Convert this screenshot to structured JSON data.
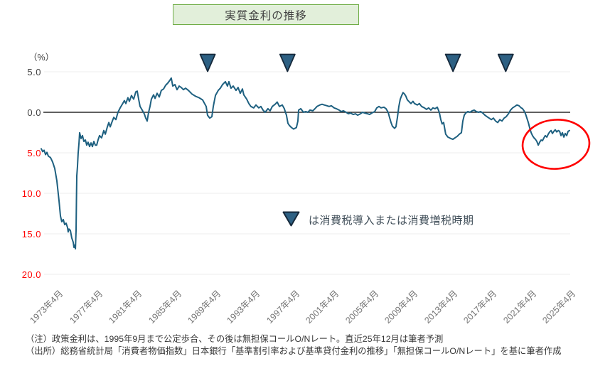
{
  "title": {
    "text": "実質金利の推移"
  },
  "axis": {
    "percent_label": "（%）"
  },
  "legend": {
    "text": "は消費税導入または消費増税時期",
    "marker": "triangle-down"
  },
  "notes": {
    "line1": "（注）政策金利は、1995年9月まで公定歩合、その後は無担保コールO/Nレート。直近25年12月は筆者予測",
    "line2": "（出所）総務省統計局「消費者物価指数」日本銀行「基準割引率および基準貸付金利の推移」「無担保コールO/Nレート」を基に筆者作成"
  },
  "colors": {
    "line": "#1e6080",
    "triangle_fill": "#2d6083",
    "triangle_stroke": "#16293b",
    "ellipse": "#ff0000",
    "zero_line": "#000000",
    "gridline": "#ececec",
    "negative_tick": "#ff0000",
    "positive_tick": "#3f3f3f",
    "title_bg": "#e2efda",
    "title_border": "#70ad47"
  },
  "chart_data": {
    "type": "line",
    "title": "実質金利の推移",
    "ylabel": "（%）",
    "unit": "%",
    "ylim": [
      -20,
      5
    ],
    "grid": "horizontal-faint",
    "y_ticks": [
      {
        "label": "5.0",
        "value": 5
      },
      {
        "label": "0.0",
        "value": 0
      },
      {
        "label": "5.0",
        "value": -5
      },
      {
        "label": "10.0",
        "value": -10
      },
      {
        "label": "15.0",
        "value": -15
      },
      {
        "label": "20.0",
        "value": -20
      }
    ],
    "x_ticks": [
      {
        "label": "1973年4月",
        "t": 1973.25
      },
      {
        "label": "1977年4月",
        "t": 1977.25
      },
      {
        "label": "1981年4月",
        "t": 1981.25
      },
      {
        "label": "1985年4月",
        "t": 1985.25
      },
      {
        "label": "1989年4月",
        "t": 1989.25
      },
      {
        "label": "1993年4月",
        "t": 1993.25
      },
      {
        "label": "1997年4月",
        "t": 1997.25
      },
      {
        "label": "2001年4月",
        "t": 2001.25
      },
      {
        "label": "2005年4月",
        "t": 2005.25
      },
      {
        "label": "2009年4月",
        "t": 2009.25
      },
      {
        "label": "2013年4月",
        "t": 2013.25
      },
      {
        "label": "2017年4月",
        "t": 2017.25
      },
      {
        "label": "2021年4月",
        "t": 2021.25
      },
      {
        "label": "2025年4月",
        "t": 2025.25
      }
    ],
    "tax_markers": {
      "symbol": "▼",
      "positions_t": [
        1989.2,
        1997.3,
        2014.1,
        2019.45
      ]
    },
    "highlight_ellipse": {
      "center_t": 2024.55,
      "center_value": -3.95,
      "note": "red oval around 2022-2025 negative real rates"
    },
    "series": [
      [
        1972.31,
        -4.5
      ],
      [
        1972.46,
        -4.86
      ],
      [
        1972.6,
        -4.68
      ],
      [
        1972.75,
        -5.23
      ],
      [
        1972.89,
        -4.95
      ],
      [
        1973.03,
        -5.41
      ],
      [
        1973.25,
        -5.59
      ],
      [
        1973.47,
        -6.13
      ],
      [
        1973.68,
        -6.94
      ],
      [
        1973.9,
        -8.47
      ],
      [
        1974.12,
        -10.99
      ],
      [
        1974.26,
        -12.79
      ],
      [
        1974.4,
        -13.51
      ],
      [
        1974.55,
        -13.24
      ],
      [
        1974.69,
        -13.87
      ],
      [
        1974.84,
        -13.69
      ],
      [
        1974.98,
        -14.23
      ],
      [
        1975.05,
        -14.77
      ],
      [
        1975.13,
        -14.41
      ],
      [
        1975.27,
        -14.59
      ],
      [
        1975.41,
        -15.5
      ],
      [
        1975.56,
        -16.04
      ],
      [
        1975.63,
        -16.67
      ],
      [
        1975.7,
        -16.4
      ],
      [
        1975.78,
        -16.85
      ],
      [
        1975.85,
        -14.6
      ],
      [
        1975.88,
        -11.0
      ],
      [
        1975.92,
        -7.84
      ],
      [
        1975.99,
        -6.67
      ],
      [
        1976.06,
        -5.1
      ],
      [
        1976.14,
        -3.8
      ],
      [
        1976.21,
        -2.52
      ],
      [
        1976.35,
        -3.24
      ],
      [
        1976.5,
        -2.88
      ],
      [
        1976.64,
        -3.6
      ],
      [
        1976.79,
        -3.42
      ],
      [
        1976.93,
        -4.05
      ],
      [
        1977.07,
        -3.69
      ],
      [
        1977.22,
        -4.23
      ],
      [
        1977.36,
        -3.78
      ],
      [
        1977.51,
        -4.23
      ],
      [
        1977.65,
        -3.6
      ],
      [
        1977.8,
        -4.05
      ],
      [
        1977.94,
        -4.05
      ],
      [
        1978.08,
        -3.42
      ],
      [
        1978.23,
        -2.88
      ],
      [
        1978.44,
        -3.15
      ],
      [
        1978.66,
        -2.25
      ],
      [
        1978.81,
        -2.7
      ],
      [
        1979.02,
        -1.8
      ],
      [
        1979.17,
        -1.26
      ],
      [
        1979.31,
        -1.8
      ],
      [
        1979.53,
        -1.08
      ],
      [
        1979.67,
        -0.63
      ],
      [
        1979.89,
        -0.9
      ],
      [
        1980.1,
        0.0
      ],
      [
        1980.32,
        0.54
      ],
      [
        1980.54,
        0.99
      ],
      [
        1980.75,
        1.44
      ],
      [
        1980.9,
        1.08
      ],
      [
        1981.11,
        1.8
      ],
      [
        1981.26,
        1.35
      ],
      [
        1981.47,
        2.07
      ],
      [
        1981.69,
        1.62
      ],
      [
        1981.91,
        2.52
      ],
      [
        1982.05,
        2.61
      ],
      [
        1982.2,
        1.62
      ],
      [
        1982.34,
        0.72
      ],
      [
        1982.56,
        0.27
      ],
      [
        1982.77,
        -0.18
      ],
      [
        1982.92,
        -0.72
      ],
      [
        1983.06,
        -1.08
      ],
      [
        1983.21,
        0.0
      ],
      [
        1983.35,
        0.72
      ],
      [
        1983.49,
        1.62
      ],
      [
        1983.71,
        2.16
      ],
      [
        1983.86,
        1.71
      ],
      [
        1984.07,
        2.34
      ],
      [
        1984.29,
        1.89
      ],
      [
        1984.5,
        2.7
      ],
      [
        1984.72,
        2.88
      ],
      [
        1984.94,
        3.33
      ],
      [
        1985.15,
        3.6
      ],
      [
        1985.37,
        3.96
      ],
      [
        1985.51,
        4.23
      ],
      [
        1985.66,
        3.24
      ],
      [
        1985.88,
        3.42
      ],
      [
        1986.09,
        2.79
      ],
      [
        1986.31,
        3.24
      ],
      [
        1986.52,
        3.06
      ],
      [
        1986.74,
        2.79
      ],
      [
        1986.96,
        2.97
      ],
      [
        1987.25,
        2.7
      ],
      [
        1987.61,
        2.25
      ],
      [
        1987.97,
        1.98
      ],
      [
        1988.33,
        1.8
      ],
      [
        1988.69,
        1.53
      ],
      [
        1989.05,
        0.72
      ],
      [
        1989.19,
        -0.36
      ],
      [
        1989.41,
        -0.72
      ],
      [
        1989.63,
        -0.54
      ],
      [
        1989.77,
        0.72
      ],
      [
        1989.99,
        2.07
      ],
      [
        1990.28,
        2.7
      ],
      [
        1990.49,
        2.97
      ],
      [
        1990.71,
        3.42
      ],
      [
        1991.0,
        3.78
      ],
      [
        1991.21,
        3.24
      ],
      [
        1991.36,
        3.78
      ],
      [
        1991.57,
        2.97
      ],
      [
        1991.79,
        3.24
      ],
      [
        1992.08,
        2.7
      ],
      [
        1992.29,
        3.06
      ],
      [
        1992.51,
        2.34
      ],
      [
        1992.73,
        2.88
      ],
      [
        1992.87,
        2.16
      ],
      [
        1993.16,
        1.62
      ],
      [
        1993.38,
        1.08
      ],
      [
        1993.59,
        0.72
      ],
      [
        1993.88,
        0.54
      ],
      [
        1994.1,
        0.9
      ],
      [
        1994.39,
        0.54
      ],
      [
        1994.6,
        0.72
      ],
      [
        1994.82,
        0.27
      ],
      [
        1995.04,
        0.0
      ],
      [
        1995.32,
        0.45
      ],
      [
        1995.54,
        0.18
      ],
      [
        1995.76,
        0.72
      ],
      [
        1996.05,
        0.99
      ],
      [
        1996.26,
        1.26
      ],
      [
        1996.48,
        0.72
      ],
      [
        1996.77,
        0.9
      ],
      [
        1996.98,
        0.45
      ],
      [
        1997.2,
        -0.36
      ],
      [
        1997.35,
        -1.35
      ],
      [
        1997.49,
        -1.62
      ],
      [
        1997.71,
        -1.89
      ],
      [
        1997.92,
        -2.07
      ],
      [
        1998.21,
        -1.89
      ],
      [
        1998.36,
        -1.08
      ],
      [
        1998.43,
        0.27
      ],
      [
        1998.65,
        0.45
      ],
      [
        1998.93,
        0.0
      ],
      [
        1999.15,
        0.09
      ],
      [
        1999.37,
        0.0
      ],
      [
        1999.58,
        0.27
      ],
      [
        1999.87,
        0.18
      ],
      [
        2000.09,
        0.45
      ],
      [
        2000.3,
        0.72
      ],
      [
        2000.59,
        0.9
      ],
      [
        2000.81,
        0.99
      ],
      [
        2001.03,
        0.9
      ],
      [
        2001.31,
        0.81
      ],
      [
        2001.53,
        0.72
      ],
      [
        2001.75,
        0.81
      ],
      [
        2002.04,
        0.54
      ],
      [
        2002.25,
        0.45
      ],
      [
        2002.54,
        0.27
      ],
      [
        2002.76,
        0.09
      ],
      [
        2002.97,
        0.18
      ],
      [
        2003.26,
        0.0
      ],
      [
        2003.48,
        -0.18
      ],
      [
        2003.7,
        -0.09
      ],
      [
        2003.98,
        -0.27
      ],
      [
        2004.2,
        -0.18
      ],
      [
        2004.42,
        -0.36
      ],
      [
        2004.71,
        -0.18
      ],
      [
        2004.92,
        0.0
      ],
      [
        2005.14,
        -0.09
      ],
      [
        2005.43,
        -0.18
      ],
      [
        2005.64,
        -0.27
      ],
      [
        2005.86,
        -0.09
      ],
      [
        2006.15,
        0.09
      ],
      [
        2006.37,
        0.54
      ],
      [
        2006.58,
        0.72
      ],
      [
        2006.8,
        0.54
      ],
      [
        2007.09,
        0.63
      ],
      [
        2007.3,
        0.45
      ],
      [
        2007.52,
        0.0
      ],
      [
        2007.66,
        -0.63
      ],
      [
        2007.81,
        -1.26
      ],
      [
        2007.95,
        -1.71
      ],
      [
        2008.17,
        -1.98
      ],
      [
        2008.31,
        -1.8
      ],
      [
        2008.46,
        -0.63
      ],
      [
        2008.6,
        0.72
      ],
      [
        2008.75,
        1.62
      ],
      [
        2008.89,
        2.07
      ],
      [
        2009.03,
        2.43
      ],
      [
        2009.18,
        2.25
      ],
      [
        2009.32,
        1.98
      ],
      [
        2009.47,
        1.53
      ],
      [
        2009.68,
        1.26
      ],
      [
        2009.83,
        1.08
      ],
      [
        2010.04,
        1.35
      ],
      [
        2010.19,
        1.08
      ],
      [
        2010.48,
        0.9
      ],
      [
        2010.69,
        1.08
      ],
      [
        2010.91,
        0.72
      ],
      [
        2011.2,
        0.54
      ],
      [
        2011.41,
        0.36
      ],
      [
        2011.63,
        0.54
      ],
      [
        2011.85,
        0.27
      ],
      [
        2012.06,
        0.54
      ],
      [
        2012.28,
        0.45
      ],
      [
        2012.5,
        0.63
      ],
      [
        2012.71,
        0.0
      ],
      [
        2012.86,
        -0.9
      ],
      [
        2013.0,
        -1.44
      ],
      [
        2013.15,
        -1.26
      ],
      [
        2013.36,
        -2.7
      ],
      [
        2013.58,
        -3.06
      ],
      [
        2013.87,
        -3.24
      ],
      [
        2014.09,
        -3.33
      ],
      [
        2014.3,
        -3.15
      ],
      [
        2014.52,
        -2.97
      ],
      [
        2014.74,
        -2.7
      ],
      [
        2014.95,
        -2.52
      ],
      [
        2015.1,
        -1.08
      ],
      [
        2015.24,
        -0.36
      ],
      [
        2015.39,
        -0.09
      ],
      [
        2015.6,
        0.09
      ],
      [
        2015.82,
        0.0
      ],
      [
        2016.04,
        0.18
      ],
      [
        2016.25,
        0.27
      ],
      [
        2016.47,
        0.09
      ],
      [
        2016.69,
        0.0
      ],
      [
        2016.9,
        0.09
      ],
      [
        2017.12,
        -0.09
      ],
      [
        2017.34,
        -0.36
      ],
      [
        2017.55,
        -0.54
      ],
      [
        2017.77,
        -0.72
      ],
      [
        2017.99,
        -0.9
      ],
      [
        2018.2,
        -0.72
      ],
      [
        2018.42,
        -1.08
      ],
      [
        2018.64,
        -1.26
      ],
      [
        2018.85,
        -0.9
      ],
      [
        2019.07,
        -1.08
      ],
      [
        2019.29,
        -0.72
      ],
      [
        2019.5,
        -0.54
      ],
      [
        2019.72,
        -0.18
      ],
      [
        2019.94,
        0.27
      ],
      [
        2020.15,
        0.54
      ],
      [
        2020.37,
        0.72
      ],
      [
        2020.59,
        0.9
      ],
      [
        2020.8,
        0.81
      ],
      [
        2021.02,
        0.54
      ],
      [
        2021.16,
        0.45
      ],
      [
        2021.31,
        0.18
      ],
      [
        2021.45,
        -0.18
      ],
      [
        2021.6,
        -0.72
      ],
      [
        2021.74,
        -1.26
      ],
      [
        2021.89,
        -1.98
      ],
      [
        2022.03,
        -2.52
      ],
      [
        2022.17,
        -2.88
      ],
      [
        2022.32,
        -3.15
      ],
      [
        2022.46,
        -3.33
      ],
      [
        2022.61,
        -3.6
      ],
      [
        2022.75,
        -4.05
      ],
      [
        2022.9,
        -3.69
      ],
      [
        2023.04,
        -3.42
      ],
      [
        2023.18,
        -3.51
      ],
      [
        2023.33,
        -3.15
      ],
      [
        2023.47,
        -2.88
      ],
      [
        2023.62,
        -3.06
      ],
      [
        2023.76,
        -2.7
      ],
      [
        2023.91,
        -2.43
      ],
      [
        2024.05,
        -2.25
      ],
      [
        2024.19,
        -2.61
      ],
      [
        2024.34,
        -2.34
      ],
      [
        2024.48,
        -2.16
      ],
      [
        2024.63,
        -2.43
      ],
      [
        2024.77,
        -2.25
      ],
      [
        2024.92,
        -2.34
      ],
      [
        2025.06,
        -2.88
      ],
      [
        2025.2,
        -2.52
      ],
      [
        2025.35,
        -3.06
      ],
      [
        2025.49,
        -2.61
      ],
      [
        2025.64,
        -2.88
      ],
      [
        2025.78,
        -2.34
      ],
      [
        2025.92,
        -2.25
      ]
    ]
  }
}
